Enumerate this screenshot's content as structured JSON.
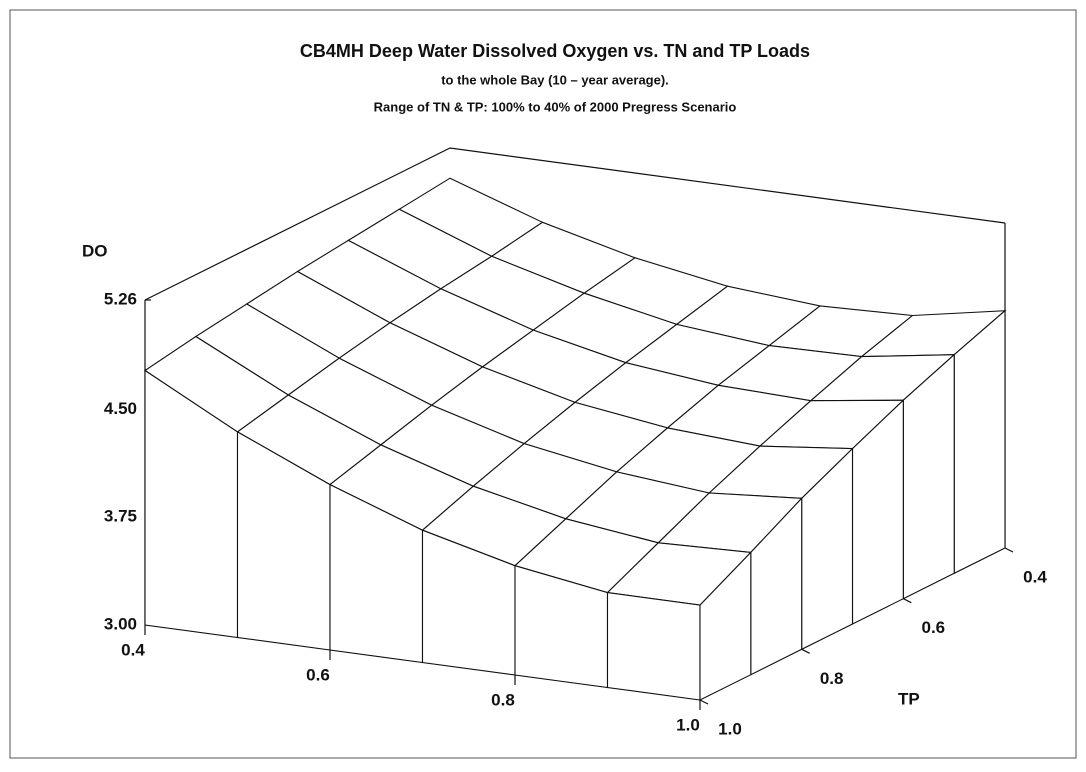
{
  "chart_data": {
    "type": "surface",
    "title": "CB4MH Deep Water Dissolved Oxygen vs. TN and TP Loads",
    "subtitle": [
      "to the whole Bay (10 – year average).",
      "Range of TN & TP: 100% to 40% of 2000 Pregress Scenario"
    ],
    "zlabel": "DO",
    "ylabel": "TP",
    "x": [
      0.4,
      0.5,
      0.6,
      0.7,
      0.8,
      0.9,
      1.0
    ],
    "y": [
      0.4,
      0.5,
      0.6,
      0.7,
      0.8,
      0.9,
      1.0
    ],
    "z": [
      [
        5.05,
        4.83,
        4.67,
        4.56,
        4.51,
        4.53,
        4.65
      ],
      [
        5.01,
        4.77,
        4.6,
        4.47,
        4.41,
        4.42,
        4.52
      ],
      [
        4.97,
        4.72,
        4.52,
        4.38,
        4.31,
        4.29,
        4.38
      ],
      [
        4.93,
        4.66,
        4.44,
        4.28,
        4.19,
        4.15,
        4.22
      ],
      [
        4.88,
        4.59,
        4.35,
        4.17,
        4.06,
        4.0,
        4.05
      ],
      [
        4.83,
        4.51,
        4.25,
        4.05,
        3.91,
        3.83,
        3.85
      ],
      [
        4.77,
        4.43,
        4.15,
        3.92,
        3.76,
        3.66,
        3.66
      ]
    ],
    "xlim": [
      0.4,
      1.0
    ],
    "ylim": [
      0.4,
      1.0
    ],
    "zlim": [
      3.0,
      5.26
    ],
    "xticks": [
      0.4,
      0.6,
      0.8,
      {
        "value": 1.0,
        "label": "1.0"
      }
    ],
    "yticks": [
      0.4,
      0.6,
      0.8,
      {
        "value": 1.0,
        "label": "1.0"
      }
    ],
    "zticks": [
      {
        "value": 3.0,
        "label": "3.00"
      },
      3.75,
      {
        "value": 4.5,
        "label": "4.50"
      },
      5.26
    ]
  }
}
